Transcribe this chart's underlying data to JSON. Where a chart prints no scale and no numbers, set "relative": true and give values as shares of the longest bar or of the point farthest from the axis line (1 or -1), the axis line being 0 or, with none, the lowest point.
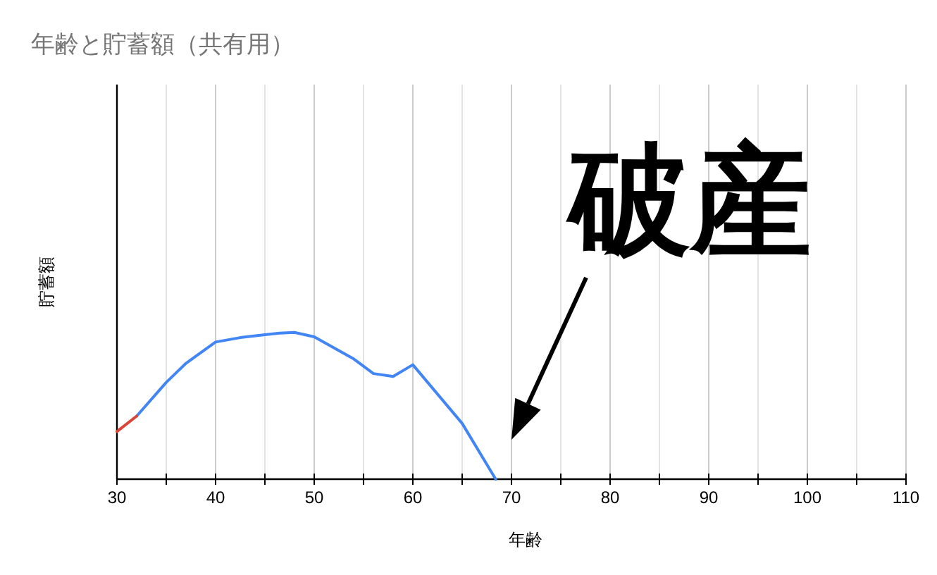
{
  "chart_data": {
    "type": "line",
    "title": "年齢と貯蓄額（共有用）",
    "xlabel": "年齢",
    "ylabel": "貯蓄額",
    "relative": true,
    "xlim": [
      30,
      110
    ],
    "xticks": [
      30,
      {
        "value": 35,
        "label": null
      },
      40,
      {
        "value": 45,
        "label": null
      },
      50,
      {
        "value": 55,
        "label": null
      },
      60,
      {
        "value": 65,
        "label": null
      },
      70,
      {
        "value": 75,
        "label": null
      },
      80,
      {
        "value": 85,
        "label": null
      },
      90,
      {
        "value": 95,
        "label": null
      },
      100,
      {
        "value": 105,
        "label": null
      },
      110
    ],
    "grid": "x",
    "series": [
      {
        "color": "#4285f4",
        "x": [
          32,
          35,
          37,
          40,
          42.5,
          45,
          46.5,
          48,
          50,
          54,
          56,
          58,
          60,
          65,
          68.4
        ],
        "values": [
          0.43,
          0.66,
          0.79,
          0.935,
          0.965,
          0.985,
          0.995,
          1,
          0.97,
          0.82,
          0.72,
          0.7,
          0.78,
          0.38,
          0
        ]
      },
      {
        "color": "#db4437",
        "x": [
          30,
          32
        ],
        "values": [
          0.325,
          0.43
        ]
      }
    ],
    "annotations": [
      "破産"
    ]
  }
}
